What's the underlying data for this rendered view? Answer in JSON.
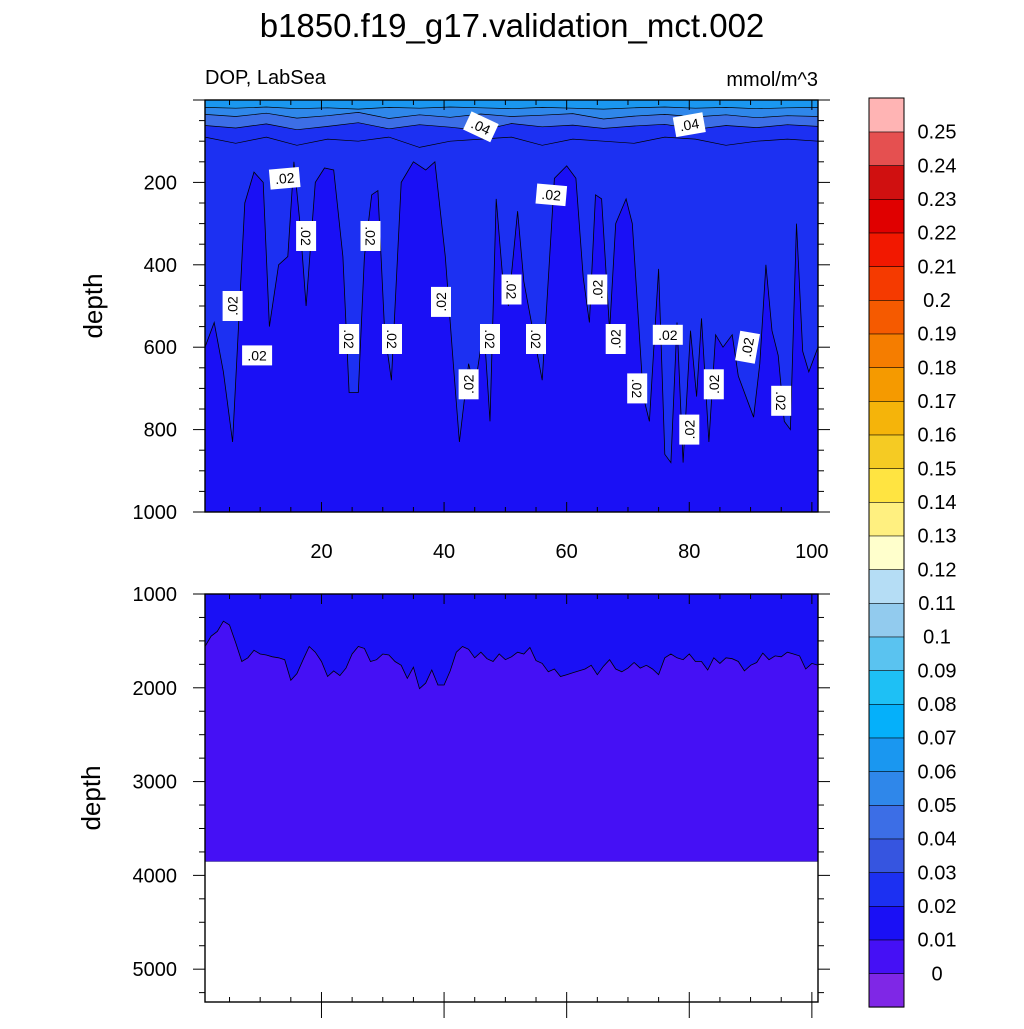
{
  "chart_data": {
    "type": "contour",
    "title": "b1850.f19_g17.validation_mct.002",
    "subtitle_left": "DOP, LabSea",
    "subtitle_right": "mmol/m^3",
    "colors": {
      "frame": "#000000",
      "missing": "#ffffff"
    },
    "colorbar": {
      "colors": [
        "#7f27e6",
        "#4510f5",
        "#1a10f5",
        "#1c30f2",
        "#3655e0",
        "#3c6ee6",
        "#2f87ea",
        "#1a97f0",
        "#05b0fa",
        "#1ec0f5",
        "#5ac3f0",
        "#92cbee",
        "#b5ddf5",
        "#ffffcc",
        "#fff080",
        "#ffe441",
        "#f5cb23",
        "#f5b40a",
        "#f59a00",
        "#f57d00",
        "#f55a00",
        "#f53a00",
        "#f21800",
        "#e00000",
        "#d01010",
        "#e55050",
        "#ffb4b4"
      ],
      "labels": [
        "0",
        "0.01",
        "0.02",
        "0.03",
        "0.04",
        "0.05",
        "0.06",
        "0.07",
        "0.08",
        "0.09",
        "0.1",
        "0.11",
        "0.12",
        "0.13",
        "0.14",
        "0.15",
        "0.16",
        "0.17",
        "0.18",
        "0.19",
        "0.2",
        "0.21",
        "0.22",
        "0.23",
        "0.24",
        "0.25"
      ]
    },
    "top_panel": {
      "ylabel": "depth",
      "xlim": [
        1,
        101
      ],
      "ylim": [
        1000,
        0
      ],
      "xticks": [
        20,
        40,
        60,
        80,
        100
      ],
      "yticks": [
        200,
        400,
        600,
        800,
        1000
      ],
      "x_tick_labels_shown": true,
      "bands": [
        {
          "color": "#1a97f0",
          "from_depth": 0,
          "to_depth": [
            18,
            20,
            17,
            21,
            19,
            22,
            18,
            20,
            17,
            19,
            21,
            18,
            20,
            22,
            19,
            17,
            20,
            18,
            21,
            19,
            18
          ]
        },
        {
          "color": "#2f87ea",
          "from_depth": [
            18,
            20,
            17,
            21,
            19,
            22,
            18,
            20,
            17,
            19,
            21,
            18,
            20,
            22,
            19,
            17,
            20,
            18,
            21,
            19,
            18
          ],
          "to_depth": [
            35,
            40,
            32,
            44,
            38,
            30,
            45,
            36,
            42,
            34,
            40,
            37,
            33,
            46,
            39,
            35,
            41,
            36,
            43,
            38,
            40
          ]
        },
        {
          "color": "#3c6ee6",
          "from_depth": [
            35,
            40,
            32,
            44,
            38,
            30,
            45,
            36,
            42,
            34,
            40,
            37,
            33,
            46,
            39,
            35,
            41,
            36,
            43,
            38,
            40
          ],
          "to_depth": [
            62,
            68,
            58,
            72,
            64,
            55,
            70,
            60,
            66,
            74,
            57,
            65,
            61,
            69,
            63,
            59,
            71,
            62,
            67,
            60,
            64
          ]
        },
        {
          "color": "#1c30f2",
          "from_depth": [
            62,
            68,
            58,
            72,
            64,
            55,
            70,
            60,
            66,
            74,
            57,
            65,
            61,
            69,
            63,
            59,
            71,
            62,
            67,
            60,
            64
          ],
          "to_depth": [
            90,
            105,
            90,
            110,
            95,
            100,
            90,
            115,
            100,
            95,
            90,
            110,
            95,
            100,
            105,
            90,
            95,
            110,
            100,
            95,
            100
          ]
        }
      ],
      "band_x": [
        1,
        6,
        11,
        16,
        21,
        26,
        31,
        36,
        41,
        46,
        51,
        56,
        61,
        66,
        71,
        76,
        81,
        86,
        91,
        96,
        101
      ],
      "contour_002": {
        "x": [
          1,
          2.5,
          4,
          5.5,
          7.5,
          9,
          10.5,
          11.5,
          13,
          14.5,
          15.5,
          16.5,
          17.5,
          19,
          20.5,
          22,
          23.5,
          24.5,
          26,
          27,
          28.2,
          29.2,
          30.3,
          31.4,
          33,
          35,
          37,
          38.5,
          40.2,
          41.5,
          42.5,
          44,
          45,
          46.5,
          47.5,
          48.5,
          49.5,
          50.5,
          52,
          53,
          55,
          56,
          58,
          60,
          61.5,
          62.7,
          63.7,
          64.7,
          65.7,
          67,
          68,
          69.7,
          70.7,
          72.5,
          73.5,
          75,
          76,
          77,
          78,
          79,
          80.2,
          81.2,
          82,
          83.2,
          84.3,
          85.5,
          87,
          88,
          89.5,
          90.5,
          91.5,
          92.5,
          93.5,
          94.5,
          95.5,
          96.5,
          97.5,
          98.5,
          99.5,
          101
        ],
        "depth": [
          600,
          540,
          660,
          830,
          250,
          175,
          200,
          550,
          400,
          380,
          150,
          300,
          500,
          200,
          165,
          170,
          380,
          710,
          710,
          380,
          230,
          220,
          560,
          680,
          200,
          150,
          170,
          150,
          380,
          640,
          830,
          640,
          700,
          550,
          780,
          240,
          420,
          500,
          270,
          440,
          600,
          680,
          190,
          160,
          190,
          430,
          540,
          230,
          240,
          560,
          300,
          240,
          300,
          720,
          780,
          410,
          860,
          880,
          540,
          880,
          560,
          720,
          530,
          830,
          570,
          600,
          570,
          670,
          730,
          770,
          640,
          400,
          560,
          620,
          780,
          800,
          300,
          610,
          660,
          600
        ]
      },
      "labels": [
        {
          "text": ".04",
          "x": 46,
          "depth": 65,
          "rotate": 25
        },
        {
          "text": ".04",
          "x": 80,
          "depth": 60,
          "rotate": -10
        },
        {
          "text": ".02",
          "x": 14,
          "depth": 190,
          "rotate": -5
        },
        {
          "text": ".02",
          "x": 57.5,
          "depth": 230,
          "rotate": 5
        },
        {
          "text": ".02",
          "x": 17.5,
          "depth": 330,
          "rotate": 90
        },
        {
          "text": ".02",
          "x": 28,
          "depth": 330,
          "rotate": 90
        },
        {
          "text": ".02",
          "x": 5.5,
          "depth": 500,
          "rotate": -90
        },
        {
          "text": ".02",
          "x": 9.5,
          "depth": 620,
          "rotate": 0
        },
        {
          "text": ".02",
          "x": 24.5,
          "depth": 580,
          "rotate": 90
        },
        {
          "text": ".02",
          "x": 31.5,
          "depth": 580,
          "rotate": 90
        },
        {
          "text": ".02",
          "x": 39.5,
          "depth": 490,
          "rotate": -90
        },
        {
          "text": ".02",
          "x": 44,
          "depth": 690,
          "rotate": -90
        },
        {
          "text": ".02",
          "x": 47.5,
          "depth": 580,
          "rotate": 90
        },
        {
          "text": ".02",
          "x": 51,
          "depth": 460,
          "rotate": 90
        },
        {
          "text": ".02",
          "x": 55,
          "depth": 580,
          "rotate": 90
        },
        {
          "text": ".02",
          "x": 65,
          "depth": 460,
          "rotate": -90
        },
        {
          "text": ".02",
          "x": 68,
          "depth": 580,
          "rotate": -90
        },
        {
          "text": ".02",
          "x": 71.5,
          "depth": 700,
          "rotate": 90
        },
        {
          "text": ".02",
          "x": 76.5,
          "depth": 570,
          "rotate": 0
        },
        {
          "text": ".02",
          "x": 80,
          "depth": 800,
          "rotate": -90
        },
        {
          "text": ".02",
          "x": 84,
          "depth": 690,
          "rotate": -90
        },
        {
          "text": ".02",
          "x": 89.5,
          "depth": 600,
          "rotate": -80
        },
        {
          "text": ".02",
          "x": 95,
          "depth": 730,
          "rotate": 90
        }
      ]
    },
    "bottom_panel": {
      "ylabel": "depth",
      "xlim": [
        1,
        101
      ],
      "ylim": [
        5350,
        1000
      ],
      "yticks": [
        1000,
        2000,
        3000,
        4000,
        5000
      ],
      "x_tick_labels_shown": false,
      "upper_color": "#1a10f5",
      "lower_color": "#4510f5",
      "floor_depth": 3850,
      "contour_001": {
        "x": [
          1,
          2,
          3,
          4,
          5,
          6,
          7,
          8,
          9,
          10,
          11,
          12,
          13,
          14,
          15,
          16,
          17,
          18,
          19,
          20,
          21,
          22,
          23,
          24,
          25,
          26,
          27,
          28,
          29,
          30,
          31,
          32,
          33,
          34,
          35,
          36,
          37,
          38,
          39,
          40,
          41,
          42,
          43,
          44,
          45,
          46,
          47,
          48,
          49,
          50,
          51,
          52,
          53,
          54,
          55,
          56,
          57,
          58,
          59,
          60,
          61,
          62,
          63,
          64,
          65,
          66,
          67,
          68,
          69,
          70,
          71,
          72,
          73,
          74,
          75,
          76,
          77,
          78,
          79,
          80,
          81,
          82,
          83,
          84,
          85,
          86,
          87,
          88,
          89,
          90,
          91,
          92,
          93,
          94,
          95,
          96,
          97,
          98,
          99,
          100,
          101
        ],
        "depth": [
          1560,
          1450,
          1400,
          1290,
          1330,
          1520,
          1720,
          1680,
          1600,
          1640,
          1650,
          1670,
          1680,
          1700,
          1920,
          1850,
          1700,
          1560,
          1620,
          1720,
          1880,
          1820,
          1870,
          1790,
          1640,
          1560,
          1580,
          1720,
          1700,
          1640,
          1650,
          1720,
          1760,
          1900,
          1780,
          2010,
          1950,
          1810,
          1970,
          1970,
          1820,
          1620,
          1560,
          1590,
          1680,
          1620,
          1690,
          1720,
          1640,
          1700,
          1670,
          1620,
          1640,
          1570,
          1710,
          1740,
          1830,
          1800,
          1880,
          1860,
          1840,
          1820,
          1800,
          1760,
          1860,
          1770,
          1700,
          1800,
          1830,
          1790,
          1730,
          1790,
          1760,
          1800,
          1860,
          1680,
          1640,
          1680,
          1700,
          1640,
          1720,
          1720,
          1810,
          1680,
          1740,
          1680,
          1690,
          1720,
          1820,
          1760,
          1730,
          1630,
          1700,
          1660,
          1670,
          1620,
          1640,
          1660,
          1800,
          1740,
          1760
        ]
      }
    }
  }
}
